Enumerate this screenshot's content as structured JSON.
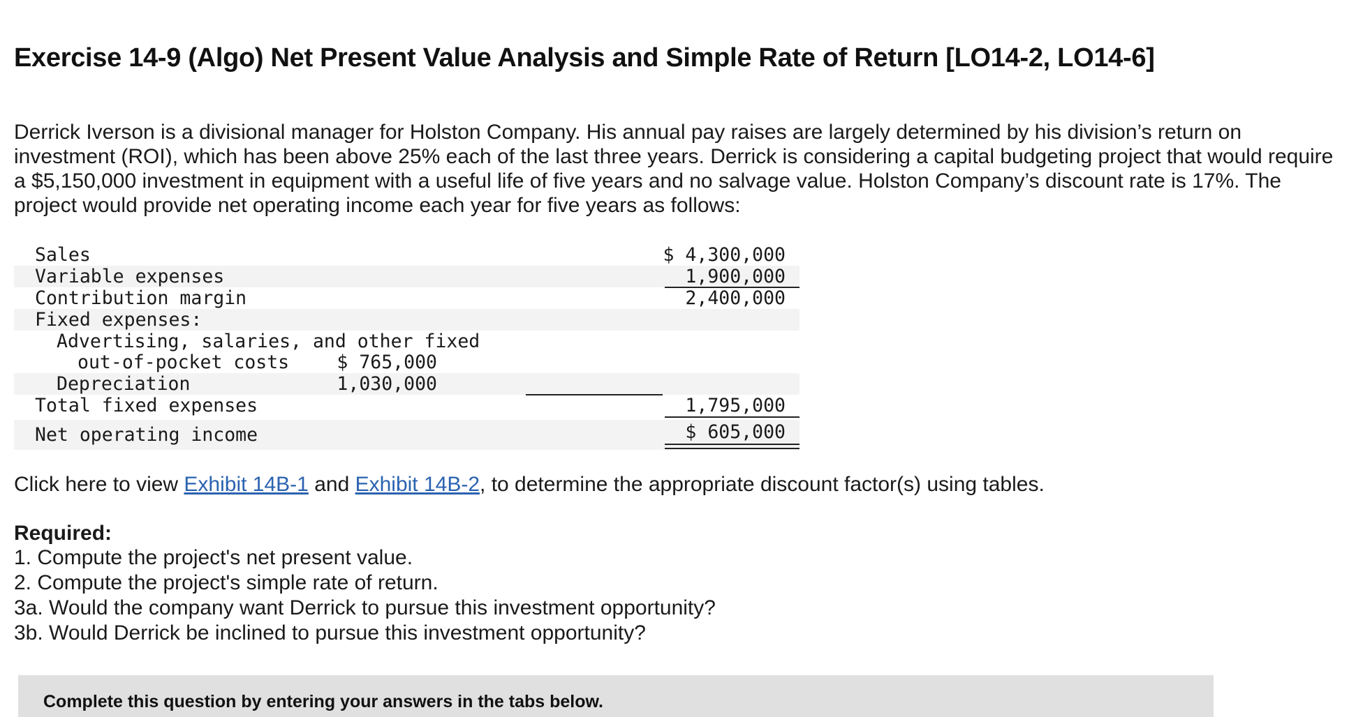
{
  "title": "Exercise 14-9 (Algo) Net Present Value Analysis and Simple Rate of Return [LO14-2, LO14-6]",
  "intro": "Derrick Iverson is a divisional manager for Holston Company. His annual pay raises are largely determined by his division’s return on investment (ROI), which has been above 25% each of the last three years. Derrick is considering a capital budgeting project that would require a $5,150,000 investment in equipment with a useful life of five years and no salvage value. Holston Company’s discount rate is 17%. The project would provide net operating income each year for five years as follows:",
  "statement": {
    "rows": [
      {
        "label": "Sales",
        "col1": "",
        "col2": "$ 4,300,000"
      },
      {
        "label": "Variable expenses",
        "col1": "",
        "col2": "1,900,000"
      },
      {
        "label": "Contribution margin",
        "col1": "",
        "col2": "2,400,000"
      },
      {
        "label": "Fixed expenses:",
        "col1": "",
        "col2": ""
      },
      {
        "label": "Advertising, salaries, and other fixed",
        "col1": "",
        "col2": ""
      },
      {
        "label": "out-of-pocket costs",
        "col1": "$ 765,000",
        "col2": ""
      },
      {
        "label": "Depreciation",
        "col1": "1,030,000",
        "col2": ""
      },
      {
        "label": "Total fixed expenses",
        "col1": "",
        "col2": "1,795,000"
      },
      {
        "label": "Net operating income",
        "col1": "",
        "col2": "$ 605,000"
      }
    ]
  },
  "click_line": {
    "prefix": "Click here to view ",
    "link1": "Exhibit 14B-1",
    "middle": " and ",
    "link2": "Exhibit 14B-2",
    "suffix": ", to determine the appropriate discount factor(s) using tables."
  },
  "required": {
    "heading": "Required:",
    "items": [
      "1. Compute the project's net present value.",
      "2. Compute the project's simple rate of return.",
      "3a. Would the company want Derrick to pursue this investment opportunity?",
      "3b. Would Derrick be inclined to pursue this investment opportunity?"
    ]
  },
  "answer_box": {
    "text": "Complete this question by entering your answers in the tabs below."
  }
}
